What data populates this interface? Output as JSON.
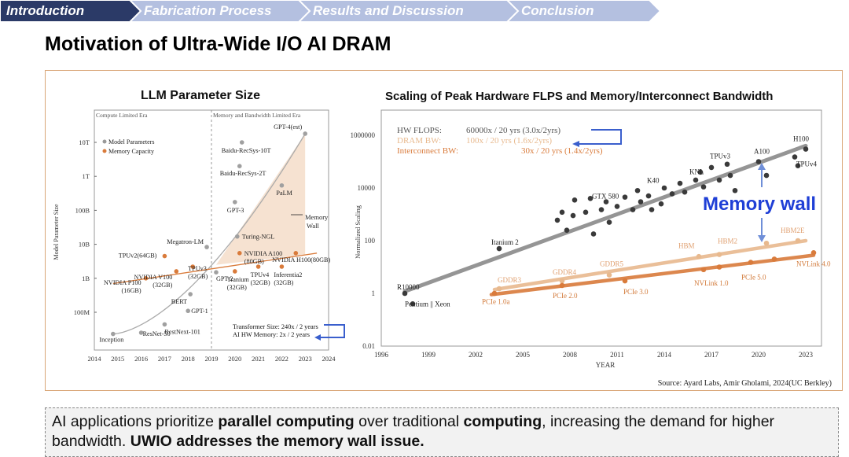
{
  "tabs": [
    {
      "label": "Introduction",
      "active": true
    },
    {
      "label": "Fabrication Process",
      "active": false
    },
    {
      "label": "Results and Discussion",
      "active": false
    },
    {
      "label": "Conclusion",
      "active": false
    }
  ],
  "colors": {
    "tab_active": "#2b3a67",
    "tab_inactive": "#b4c0e0",
    "orange": "#d97b3b",
    "light_orange": "#e8b98e",
    "gray": "#9a9a9a",
    "blue": "#3a5fcd",
    "accent_blue": "#1f3fd6"
  },
  "page_title": "Motivation of Ultra-Wide I/O AI DRAM",
  "callout": {
    "part1": "AI applications prioritize ",
    "bold1": "parallel computing",
    "part2": " over traditional ",
    "bold2": "computing",
    "part3": ", increasing the demand for higher bandwidth. ",
    "bold3": "UWIO addresses the memory wall issue."
  },
  "chart_data": [
    {
      "type": "scatter",
      "title": "LLM Parameter Size",
      "ylabel": "Model Parameter Size",
      "xlim": [
        2014,
        2024
      ],
      "y_scale": "log",
      "y_ticks": [
        "100M",
        "1B",
        "10B",
        "100B",
        "1T",
        "10T"
      ],
      "x_ticks": [
        "2014",
        "2015",
        "2016",
        "2017",
        "2018",
        "2019",
        "2020",
        "2021",
        "2022",
        "2023",
        "2024"
      ],
      "eras": [
        "Compute Limited Era",
        "Memory and Bandwidth Limited Era"
      ],
      "legend": [
        "Model Parameters",
        "Memory Capacity"
      ],
      "annotation_memory_wall": "Memory Wall",
      "annotation_note": [
        "Transformer Size: 240x / 2 years",
        "AI HW Memory: 2x / 2 years"
      ],
      "series": [
        {
          "name": "Model Parameters",
          "points": [
            {
              "label": "Inception",
              "x": 2014.8,
              "y": 0.023
            },
            {
              "label": "ResNet-50",
              "x": 2016.0,
              "y": 0.025
            },
            {
              "label": "RestNext-101",
              "x": 2017.0,
              "y": 0.044
            },
            {
              "label": "GPT-1",
              "x": 2018.0,
              "y": 0.11
            },
            {
              "label": "BERT",
              "x": 2018.1,
              "y": 0.34
            },
            {
              "label": "Megatron-LM",
              "x": 2018.8,
              "y": 8.3
            },
            {
              "label": "GPT-2",
              "x": 2019.2,
              "y": 1.5
            },
            {
              "label": "GPT-3",
              "x": 2020.0,
              "y": 175
            },
            {
              "label": "Turing-NGL",
              "x": 2020.1,
              "y": 17
            },
            {
              "label": "Baidu-RecSys-2T",
              "x": 2020.2,
              "y": 2000
            },
            {
              "label": "Baidu-RecSys-10T",
              "x": 2020.3,
              "y": 10000
            },
            {
              "label": "PaLM",
              "x": 2022.0,
              "y": 540
            },
            {
              "label": "GPT-4(est)",
              "x": 2023.0,
              "y": 18000
            }
          ]
        },
        {
          "name": "Memory Capacity",
          "points": [
            {
              "label": "NVIDIA P100 (16GB)",
              "x": 2016.2,
              "y": 1.0
            },
            {
              "label": "TPUv2(64GB)",
              "x": 2017.0,
              "y": 4.5
            },
            {
              "label": "NVIDIA V100 (32GB)",
              "x": 2017.5,
              "y": 1.6
            },
            {
              "label": "TPUv3 (32GB)",
              "x": 2018.2,
              "y": 2.2
            },
            {
              "label": "Tranium (32GB)",
              "x": 2020.0,
              "y": 1.6
            },
            {
              "label": "TPUv4 (32GB)",
              "x": 2021.0,
              "y": 2.2
            },
            {
              "label": "NVIDIA A100 (80GB)",
              "x": 2020.2,
              "y": 5.5
            },
            {
              "label": "Inferentia2 (32GB)",
              "x": 2022.0,
              "y": 2.2
            },
            {
              "label": "NVIDIA H100(80GB)",
              "x": 2022.6,
              "y": 5.5
            }
          ]
        }
      ]
    },
    {
      "type": "scatter",
      "title": "Scaling of Peak Hardware FLPS and Memory/Interconnect  Bandwidth",
      "xlabel": "YEAR",
      "ylabel": "Normalized Scaling",
      "xlim": [
        1996,
        2024
      ],
      "y_scale": "log",
      "ylim": [
        0.01,
        1000000
      ],
      "y_ticks": [
        "0.01",
        "1",
        "100",
        "10000",
        "1000000"
      ],
      "x_ticks": [
        "1996",
        "1999",
        "2002",
        "2005",
        "2008",
        "2011",
        "2014",
        "2017",
        "2020",
        "2023"
      ],
      "legend_text": [
        {
          "name": "HW FLOPS:",
          "value": "60000x / 20 yrs (3.0x/2yrs)"
        },
        {
          "name": "DRAM BW:",
          "value": "100x / 20 yrs (1.6x/2yrs)"
        },
        {
          "name": "Interconnect BW:",
          "value": "30x / 20 yrs (1.4x/2yrs)"
        }
      ],
      "annotation": "Memory wall",
      "source": "Source: Ayard Labs, Amir Gholami, 2024(UC Berkley)",
      "series": [
        {
          "name": "HW FLOPS",
          "trend": [
            [
              1997.5,
              1.2
            ],
            [
              2023,
              400000
            ]
          ],
          "points": [
            {
              "x": 1997.5,
              "y": 1,
              "label": "R10000"
            },
            {
              "x": 1998.0,
              "y": 0.4,
              "label": "Pentium || Xeon"
            },
            {
              "x": 2003.5,
              "y": 50,
              "label": "Itanium 2"
            },
            {
              "x": 2007.2,
              "y": 600
            },
            {
              "x": 2007.5,
              "y": 1200
            },
            {
              "x": 2007.8,
              "y": 250
            },
            {
              "x": 2008.2,
              "y": 900
            },
            {
              "x": 2008.3,
              "y": 3500
            },
            {
              "x": 2009.0,
              "y": 1200
            },
            {
              "x": 2009.3,
              "y": 4000
            },
            {
              "x": 2009.5,
              "y": 180
            },
            {
              "x": 2010.0,
              "y": 1500
            },
            {
              "x": 2010.3,
              "y": 3000
            },
            {
              "x": 2010.5,
              "y": 500
            },
            {
              "x": 2011.0,
              "y": 2000
            },
            {
              "x": 2011.5,
              "y": 4500
            },
            {
              "x": 2012.0,
              "y": 1500
            },
            {
              "x": 2012.3,
              "y": 8000
            },
            {
              "x": 2012.5,
              "y": 3000
            },
            {
              "x": 2013.0,
              "y": 5000
            },
            {
              "x": 2013.2,
              "y": 1500
            },
            {
              "x": 2013.8,
              "y": 2500
            },
            {
              "x": 2014.0,
              "y": 10000
            },
            {
              "x": 2014.5,
              "y": 6000
            },
            {
              "x": 2015.0,
              "y": 15000
            },
            {
              "x": 2015.3,
              "y": 7000
            },
            {
              "x": 2016.0,
              "y": 20000
            },
            {
              "x": 2016.3,
              "y": 40000
            },
            {
              "x": 2016.5,
              "y": 11000
            },
            {
              "x": 2017.0,
              "y": 60000
            },
            {
              "x": 2017.5,
              "y": 20000
            },
            {
              "x": 2018.0,
              "y": 80000
            },
            {
              "x": 2018.2,
              "y": 30000
            },
            {
              "x": 2018.5,
              "y": 8000
            },
            {
              "x": 2020.0,
              "y": 100000
            },
            {
              "x": 2020.5,
              "y": 30000
            },
            {
              "x": 2022.3,
              "y": 150000
            },
            {
              "x": 2022.5,
              "y": 70000
            },
            {
              "x": 2023.0,
              "y": 300000
            }
          ],
          "labels": [
            {
              "label": "GTX 580",
              "x": 2010.0,
              "y": 3000
            },
            {
              "label": "K40",
              "x": 2013.5,
              "y": 12000
            },
            {
              "label": "KNL",
              "x": 2016.2,
              "y": 25000
            },
            {
              "label": "TPUv3",
              "x": 2017.5,
              "y": 100000
            },
            {
              "label": "A100",
              "x": 2020.3,
              "y": 150000
            },
            {
              "label": "H100",
              "x": 2022.8,
              "y": 450000
            },
            {
              "label": "TPUv4",
              "x": 2023.0,
              "y": 50000
            }
          ]
        },
        {
          "name": "DRAM BW",
          "trend": [
            [
              2003.2,
              1.4
            ],
            [
              2023,
              100
            ]
          ],
          "points": [
            {
              "x": 2003.5,
              "y": 1.5
            },
            {
              "x": 2007.5,
              "y": 3
            },
            {
              "x": 2010.5,
              "y": 5
            },
            {
              "x": 2016.2,
              "y": 25
            },
            {
              "x": 2017.5,
              "y": 30
            },
            {
              "x": 2020.5,
              "y": 80
            },
            {
              "x": 2022.5,
              "y": 100
            }
          ],
          "labels": [
            {
              "label": "GDDR3",
              "x": 2004.0,
              "y": 2
            },
            {
              "label": "GDDR4",
              "x": 2007.5,
              "y": 4
            },
            {
              "label": "GDDR5",
              "x": 2010.5,
              "y": 8
            },
            {
              "label": "HBM",
              "x": 2015.5,
              "y": 40
            },
            {
              "label": "HBM2",
              "x": 2018.0,
              "y": 60
            },
            {
              "label": "HBM2E",
              "x": 2022.0,
              "y": 150
            }
          ]
        },
        {
          "name": "Interconnect BW",
          "trend": [
            [
              2003.0,
              0.9
            ],
            [
              2023.5,
              28
            ]
          ],
          "points": [
            {
              "x": 2003.2,
              "y": 1
            },
            {
              "x": 2007.5,
              "y": 2
            },
            {
              "x": 2011.5,
              "y": 3
            },
            {
              "x": 2016.5,
              "y": 8
            },
            {
              "x": 2017.5,
              "y": 10
            },
            {
              "x": 2019.5,
              "y": 15
            },
            {
              "x": 2021.0,
              "y": 20
            },
            {
              "x": 2023.5,
              "y": 35
            }
          ],
          "labels": [
            {
              "label": "PCIe 1.0a",
              "x": 2003.0,
              "y": 0.3
            },
            {
              "label": "PCIe 2.0",
              "x": 2007.5,
              "y": 0.5
            },
            {
              "label": "PCIe 3.0",
              "x": 2012.0,
              "y": 0.7
            },
            {
              "label": "NVLink 1.0",
              "x": 2016.5,
              "y": 1.5
            },
            {
              "label": "PCIe 5.0",
              "x": 2019.5,
              "y": 2.5
            },
            {
              "label": "NVLink 4.0",
              "x": 2023.0,
              "y": 8
            }
          ]
        }
      ]
    }
  ]
}
